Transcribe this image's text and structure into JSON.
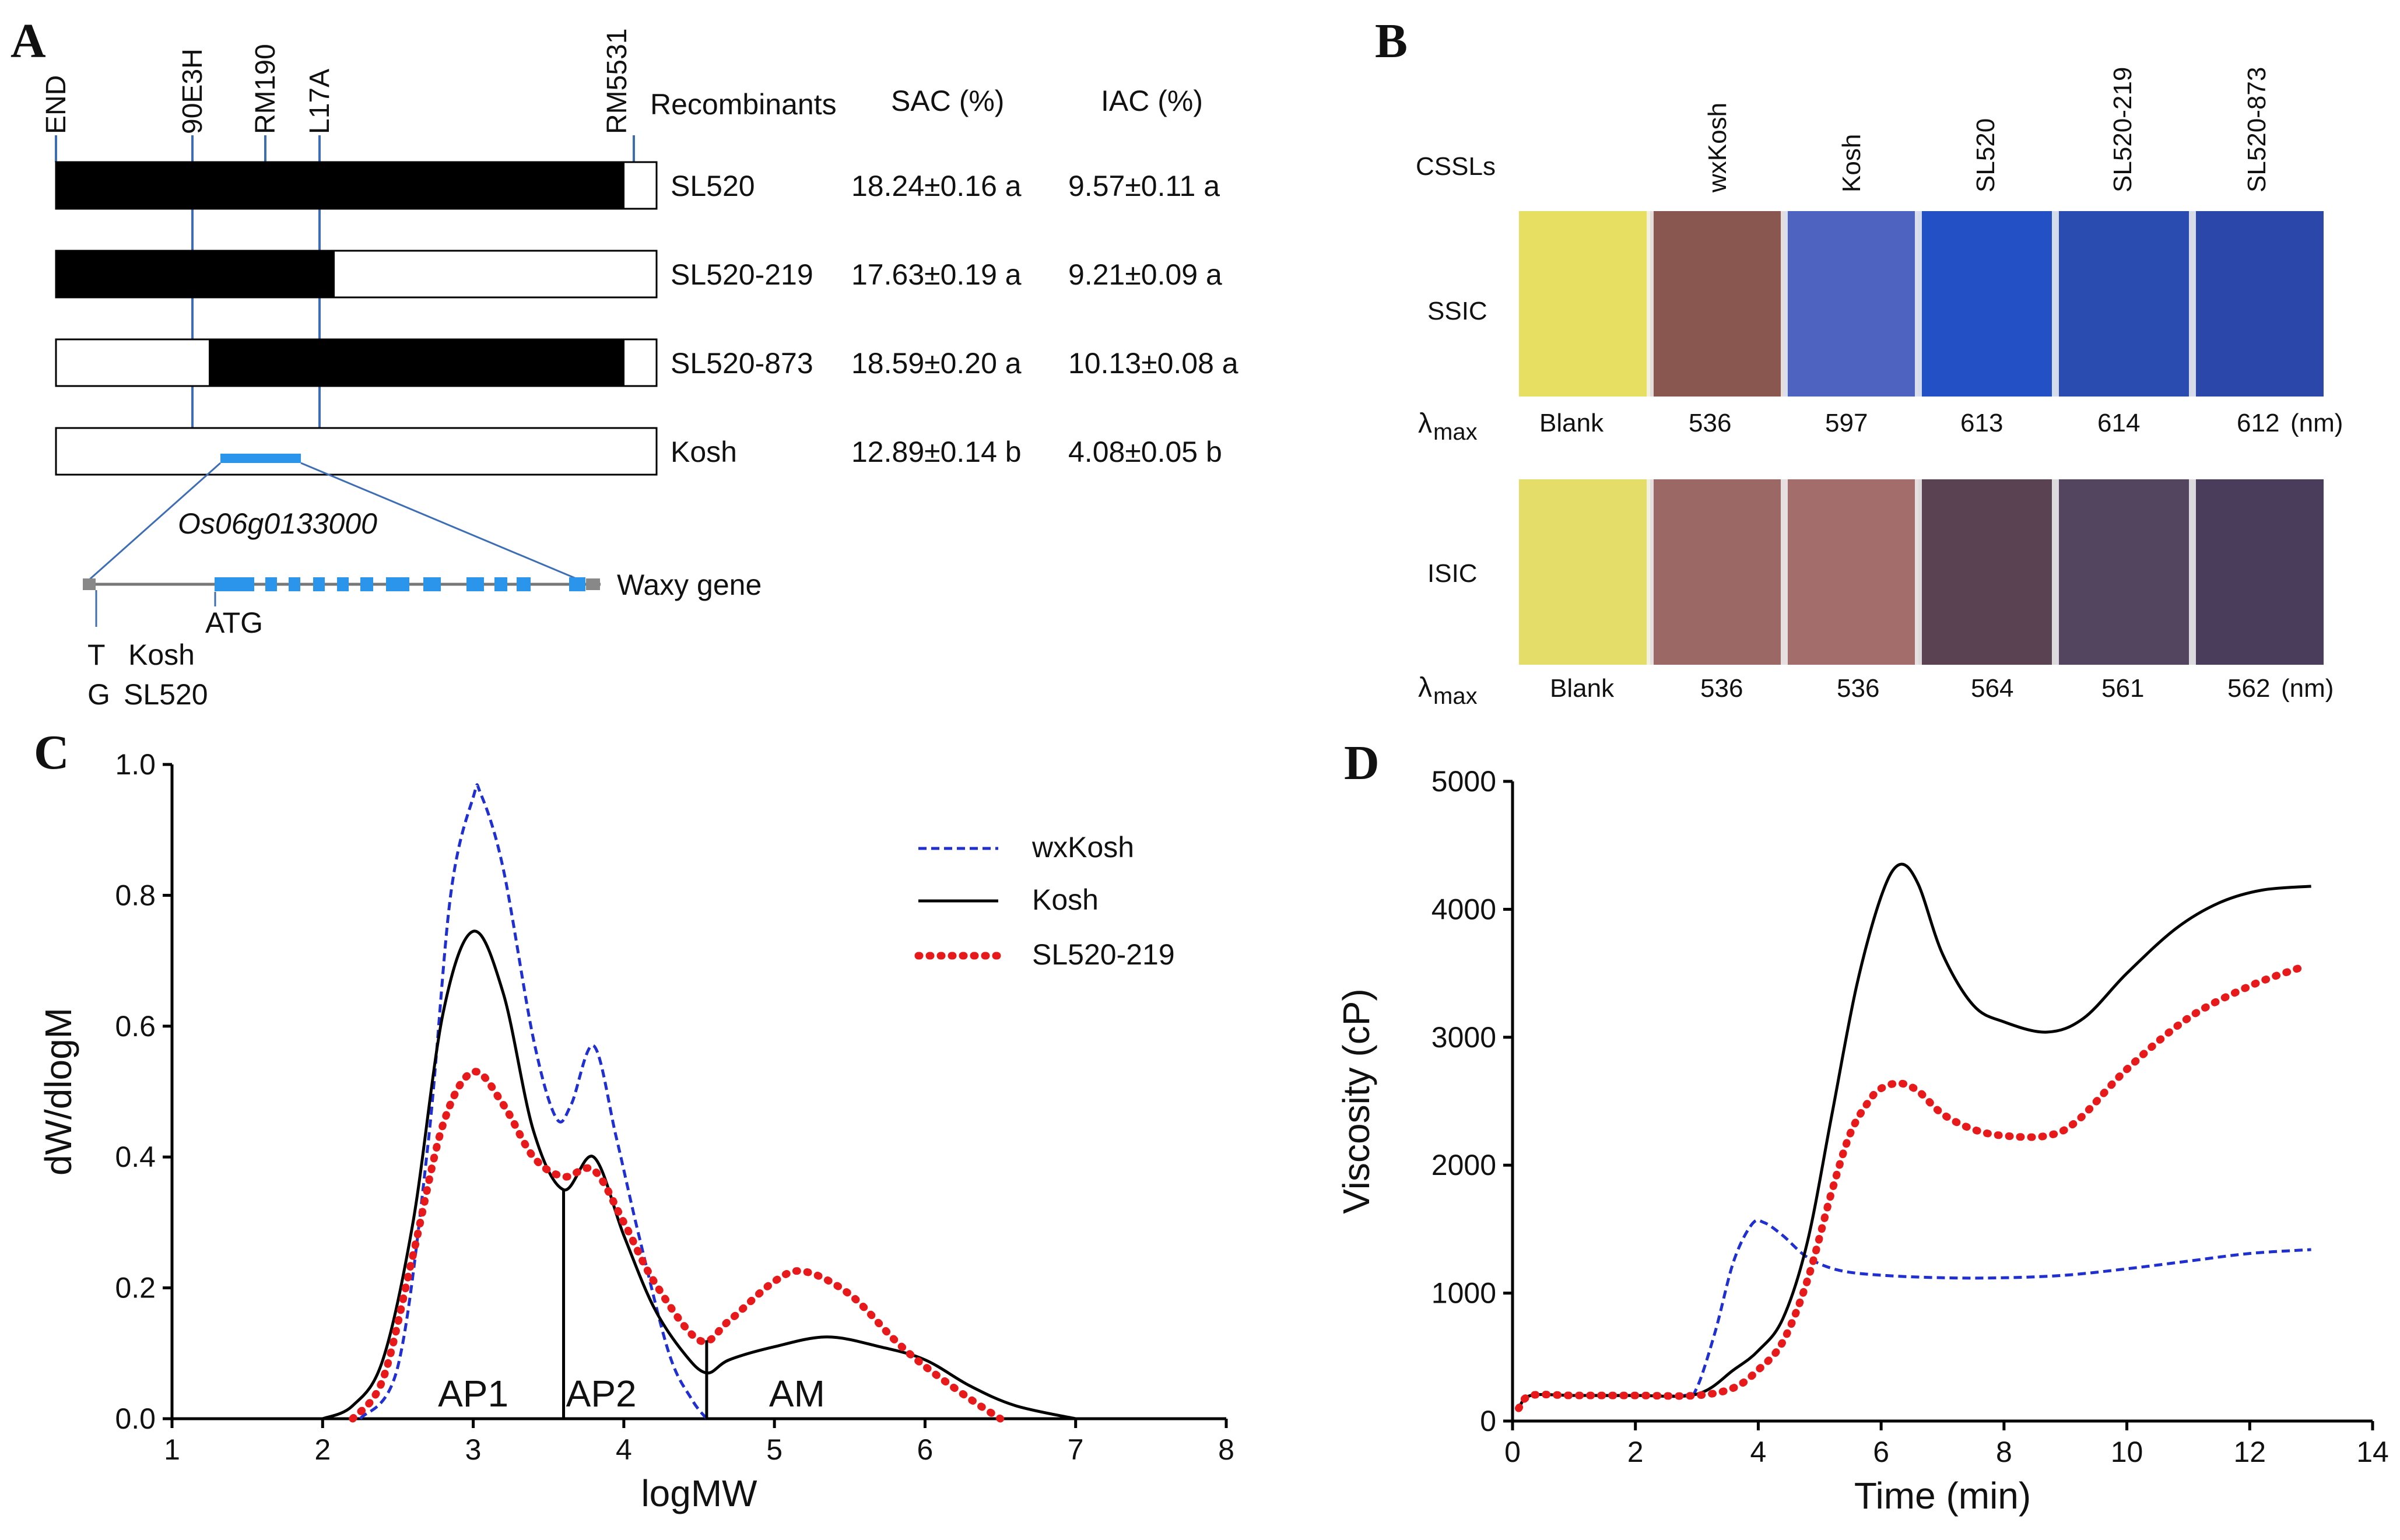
{
  "panels": {
    "a": "A",
    "b": "B",
    "c": "C",
    "d": "D"
  },
  "panel_a": {
    "markers": [
      "END",
      "90E3H",
      "RM190",
      "L17A",
      "RM5531"
    ],
    "headers": {
      "recombinants": "Recombinants",
      "sac": "SAC (%)",
      "iac": "IAC (%)"
    },
    "rows": [
      {
        "name": "SL520",
        "sac": "18.24±0.16 a",
        "iac": "9.57±0.11 a"
      },
      {
        "name": "SL520-219",
        "sac": "17.63±0.19 a",
        "iac": "9.21±0.09 a"
      },
      {
        "name": "SL520-873",
        "sac": "18.59±0.20 a",
        "iac": "10.13±0.08 a"
      },
      {
        "name": "Kosh",
        "sac": "12.89±0.14 b",
        "iac": "4.08±0.05 b"
      }
    ],
    "gene_id": "Os06g0133000",
    "gene_label": "Waxy gene",
    "atg": "ATG",
    "snp": {
      "t": "T",
      "g": "G",
      "kosh": "Kosh",
      "sl520": "SL520"
    }
  },
  "panel_b": {
    "row_header": "CSSLs",
    "columns": [
      "wxKosh",
      "Kosh",
      "SL520",
      "SL520-219",
      "SL520-873"
    ],
    "ssic": {
      "label": "SSIC",
      "lambda": [
        "Blank",
        "536",
        "597",
        "613",
        "614",
        "612"
      ]
    },
    "isic": {
      "label": "ISIC",
      "lambda": [
        "Blank",
        "536",
        "536",
        "564",
        "561",
        "562"
      ]
    },
    "lambda_label": "λ",
    "lambda_sub": "max",
    "unit": "(nm)",
    "colors": {
      "ssic": [
        "#e6df62",
        "#8a5650",
        "#4e63c0",
        "#2450c6",
        "#2a4cb0",
        "#2b47aa"
      ],
      "isic": [
        "#e5dd6a",
        "#9c6865",
        "#a26d6a",
        "#5a4253",
        "#53455f",
        "#4a3d5c"
      ]
    }
  },
  "chart_data": [
    {
      "type": "line",
      "panel": "C",
      "title": "",
      "xlabel": "logMW",
      "ylabel": "dW/dlogM",
      "xlim": [
        1,
        8
      ],
      "ylim": [
        0,
        1.0
      ],
      "x_ticks": [
        "1",
        "2",
        "3",
        "4",
        "5",
        "6",
        "7",
        "8"
      ],
      "y_ticks": [
        "0.0",
        "0.2",
        "0.4",
        "0.6",
        "0.8",
        "1.0"
      ],
      "legend_position": "top-right",
      "fraction_labels": [
        "AP1",
        "AP2",
        "AM"
      ],
      "dividers": [
        {
          "x": 3.6,
          "y": 0.35
        },
        {
          "x": 4.55,
          "y": 0.12
        }
      ],
      "series": [
        {
          "name": "wxKosh",
          "color": "#1f2fd0",
          "style": "dashed",
          "x": [
            2.25,
            2.5,
            2.7,
            2.85,
            3.0,
            3.05,
            3.2,
            3.4,
            3.55,
            3.65,
            3.8,
            3.95,
            4.1,
            4.3,
            4.45,
            4.55
          ],
          "y": [
            0.0,
            0.08,
            0.42,
            0.8,
            0.95,
            0.955,
            0.84,
            0.58,
            0.46,
            0.48,
            0.57,
            0.43,
            0.28,
            0.1,
            0.03,
            0.0
          ]
        },
        {
          "name": "Kosh",
          "color": "#000000",
          "style": "solid",
          "x": [
            2.0,
            2.2,
            2.4,
            2.6,
            2.8,
            3.0,
            3.2,
            3.4,
            3.6,
            3.8,
            4.0,
            4.2,
            4.4,
            4.55,
            4.7,
            5.0,
            5.35,
            5.7,
            6.0,
            6.3,
            6.6,
            7.0
          ],
          "y": [
            0.0,
            0.02,
            0.09,
            0.3,
            0.62,
            0.745,
            0.65,
            0.44,
            0.35,
            0.4,
            0.28,
            0.17,
            0.1,
            0.07,
            0.09,
            0.11,
            0.125,
            0.11,
            0.09,
            0.05,
            0.02,
            0.0
          ]
        },
        {
          "name": "SL520-219",
          "color": "#e8191b",
          "style": "dotted",
          "x": [
            2.2,
            2.4,
            2.6,
            2.8,
            3.0,
            3.2,
            3.4,
            3.6,
            3.8,
            4.0,
            4.2,
            4.5,
            4.7,
            5.0,
            5.2,
            5.5,
            5.8,
            6.0,
            6.3,
            6.5
          ],
          "y": [
            0.0,
            0.06,
            0.25,
            0.45,
            0.53,
            0.48,
            0.4,
            0.37,
            0.38,
            0.3,
            0.21,
            0.12,
            0.15,
            0.21,
            0.225,
            0.19,
            0.12,
            0.08,
            0.03,
            0.0
          ]
        }
      ]
    },
    {
      "type": "line",
      "panel": "D",
      "title": "",
      "xlabel": "Time (min)",
      "ylabel": "Viscosity (cP)",
      "xlim": [
        0,
        14
      ],
      "ylim": [
        0,
        5000
      ],
      "x_ticks": [
        "0",
        "2",
        "4",
        "6",
        "8",
        "10",
        "12",
        "14"
      ],
      "y_ticks": [
        "0",
        "1000",
        "2000",
        "3000",
        "4000",
        "5000"
      ],
      "series": [
        {
          "name": "wxKosh",
          "color": "#1f2fd0",
          "style": "dashed",
          "x": [
            0.1,
            0.3,
            1.0,
            2.0,
            2.8,
            3.0,
            3.3,
            3.6,
            3.9,
            4.1,
            4.4,
            4.8,
            5.3,
            6.0,
            7.0,
            8.0,
            9.0,
            10.0,
            11.0,
            12.0,
            13.0
          ],
          "y": [
            100,
            200,
            200,
            200,
            200,
            260,
            700,
            1250,
            1540,
            1550,
            1450,
            1280,
            1180,
            1140,
            1120,
            1120,
            1140,
            1190,
            1250,
            1310,
            1340
          ]
        },
        {
          "name": "Kosh",
          "color": "#000000",
          "style": "solid",
          "x": [
            0.1,
            0.3,
            1.0,
            2.0,
            3.0,
            3.6,
            4.0,
            4.4,
            4.8,
            5.2,
            5.6,
            6.0,
            6.3,
            6.6,
            7.0,
            7.5,
            8.0,
            8.7,
            9.3,
            10.0,
            10.8,
            11.5,
            12.2,
            13.0
          ],
          "y": [
            100,
            200,
            200,
            200,
            210,
            400,
            550,
            800,
            1400,
            2400,
            3400,
            4100,
            4350,
            4200,
            3650,
            3250,
            3120,
            3040,
            3150,
            3500,
            3850,
            4050,
            4150,
            4180
          ]
        },
        {
          "name": "SL520-219",
          "color": "#e8191b",
          "style": "dotted",
          "x": [
            0.1,
            0.3,
            1.0,
            2.0,
            3.0,
            3.6,
            4.0,
            4.4,
            4.8,
            5.2,
            5.5,
            5.8,
            6.0,
            6.3,
            6.6,
            7.0,
            7.5,
            8.0,
            8.7,
            9.2,
            10.0,
            11.0,
            12.0,
            12.8
          ],
          "y": [
            100,
            200,
            200,
            200,
            200,
            260,
            400,
            620,
            1100,
            1800,
            2250,
            2500,
            2600,
            2640,
            2580,
            2400,
            2280,
            2230,
            2230,
            2350,
            2750,
            3150,
            3400,
            3540
          ]
        }
      ]
    }
  ]
}
